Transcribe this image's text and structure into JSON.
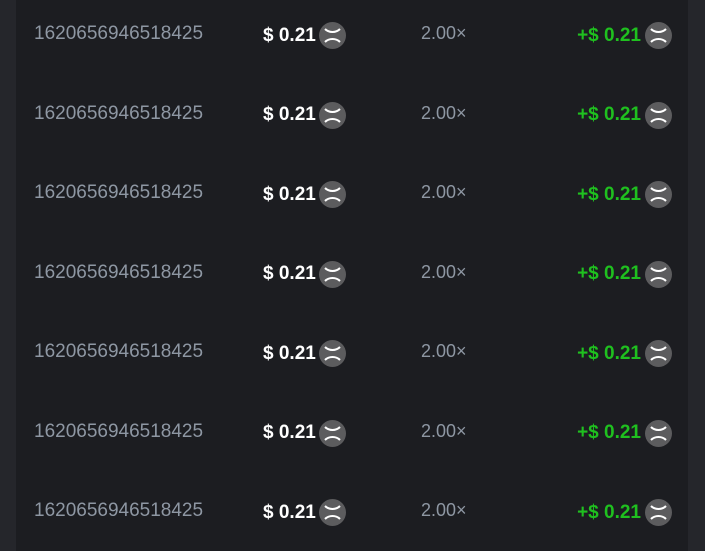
{
  "colors": {
    "payout": "#1fc01f",
    "coin": "#5c5c5e",
    "text_muted": "#8e97a3"
  },
  "coin_icon": "xrp-icon",
  "rows": [
    {
      "id": "1620656946518425",
      "bet": "$ 0.21",
      "multiplier": "2.00×",
      "payout": "+$ 0.21"
    },
    {
      "id": "1620656946518425",
      "bet": "$ 0.21",
      "multiplier": "2.00×",
      "payout": "+$ 0.21"
    },
    {
      "id": "1620656946518425",
      "bet": "$ 0.21",
      "multiplier": "2.00×",
      "payout": "+$ 0.21"
    },
    {
      "id": "1620656946518425",
      "bet": "$ 0.21",
      "multiplier": "2.00×",
      "payout": "+$ 0.21"
    },
    {
      "id": "1620656946518425",
      "bet": "$ 0.21",
      "multiplier": "2.00×",
      "payout": "+$ 0.21"
    },
    {
      "id": "1620656946518425",
      "bet": "$ 0.21",
      "multiplier": "2.00×",
      "payout": "+$ 0.21"
    },
    {
      "id": "1620656946518425",
      "bet": "$ 0.21",
      "multiplier": "2.00×",
      "payout": "+$ 0.21"
    }
  ]
}
